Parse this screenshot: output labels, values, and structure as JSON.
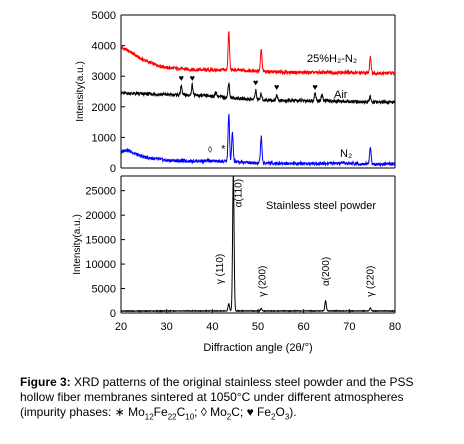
{
  "chart_data": [
    {
      "type": "line",
      "ylabel": "Intensity(a.u.)",
      "ylim": [
        0,
        5000
      ],
      "yticks": [
        0,
        1000,
        2000,
        3000,
        4000,
        5000
      ],
      "xlim": [
        20,
        80
      ],
      "grid": false,
      "series": [
        {
          "name": "25%H₂-N₂",
          "color": "#ff0000",
          "baseline": [
            [
              20,
              3950
            ],
            [
              22,
              3800
            ],
            [
              24,
              3600
            ],
            [
              27,
              3400
            ],
            [
              30,
              3280
            ],
            [
              35,
              3220
            ],
            [
              40,
              3200
            ],
            [
              45,
              3200
            ],
            [
              50,
              3170
            ],
            [
              55,
              3130
            ],
            [
              60,
              3120
            ],
            [
              65,
              3120
            ],
            [
              70,
              3120
            ],
            [
              75,
              3100
            ],
            [
              80,
              3100
            ]
          ],
          "peaks": [
            [
              43.6,
              1250
            ],
            [
              50.7,
              700
            ],
            [
              74.6,
              550
            ]
          ]
        },
        {
          "name": "Air",
          "color": "#000000",
          "baseline": [
            [
              20,
              2450
            ],
            [
              25,
              2420
            ],
            [
              30,
              2400
            ],
            [
              35,
              2380
            ],
            [
              40,
              2350
            ],
            [
              45,
              2280
            ],
            [
              50,
              2230
            ],
            [
              55,
              2200
            ],
            [
              60,
              2200
            ],
            [
              65,
              2200
            ],
            [
              70,
              2170
            ],
            [
              75,
              2150
            ],
            [
              80,
              2150
            ]
          ],
          "peaks": [
            [
              33.2,
              300
            ],
            [
              35.6,
              350
            ],
            [
              40.8,
              150
            ],
            [
              43.6,
              500
            ],
            [
              49.5,
              300
            ],
            [
              50.7,
              200
            ],
            [
              54.1,
              200
            ],
            [
              62.5,
              250
            ],
            [
              64.0,
              200
            ],
            [
              74.6,
              200
            ]
          ]
        },
        {
          "name": "N₂",
          "color": "#0000ff",
          "baseline": [
            [
              20,
              500
            ],
            [
              21,
              600
            ],
            [
              22,
              550
            ],
            [
              24,
              400
            ],
            [
              26,
              330
            ],
            [
              30,
              250
            ],
            [
              35,
              230
            ],
            [
              40,
              230
            ],
            [
              45,
              200
            ],
            [
              50,
              170
            ],
            [
              55,
              150
            ],
            [
              60,
              150
            ],
            [
              65,
              150
            ],
            [
              70,
              150
            ],
            [
              75,
              130
            ],
            [
              80,
              130
            ]
          ],
          "peaks": [
            [
              43.6,
              1550
            ],
            [
              44.4,
              950
            ],
            [
              50.7,
              850
            ],
            [
              74.6,
              550
            ]
          ]
        }
      ],
      "markers": [
        {
          "symbol": "♥",
          "x": 33.2,
          "y": 2850
        },
        {
          "symbol": "♥",
          "x": 35.6,
          "y": 2850
        },
        {
          "symbol": "♥",
          "x": 49.5,
          "y": 2700
        },
        {
          "symbol": "♥",
          "x": 54.1,
          "y": 2550
        },
        {
          "symbol": "♥",
          "x": 62.5,
          "y": 2550
        },
        {
          "symbol": "◊",
          "x": 39.5,
          "y": 500
        },
        {
          "symbol": "*",
          "x": 42.4,
          "y": 500
        }
      ]
    },
    {
      "type": "line",
      "ylabel": "Intensity(a.u.)",
      "ylim": [
        0,
        28000
      ],
      "yticks": [
        0,
        5000,
        10000,
        15000,
        20000,
        25000
      ],
      "xlim": [
        20,
        80
      ],
      "xticks": [
        20,
        30,
        40,
        50,
        60,
        70,
        80
      ],
      "xlabel": "Diffraction angle (2θ/°)",
      "grid": false,
      "title": "Stainless steel powder",
      "series": [
        {
          "name": "Stainless steel powder",
          "color": "#000000",
          "baseline": [
            [
              20,
              400
            ],
            [
              40,
              420
            ],
            [
              80,
              420
            ]
          ],
          "peaks": [
            [
              43.6,
              1500
            ],
            [
              44.6,
              28000
            ],
            [
              50.7,
              500
            ],
            [
              64.8,
              2100
            ],
            [
              74.6,
              600
            ],
            [
              82.2,
              300
            ]
          ]
        }
      ],
      "peak_labels": [
        {
          "text": "γ (110)",
          "x": 42.3,
          "y": 9000
        },
        {
          "text": "α(110)",
          "x": 46.4,
          "y": 24500
        },
        {
          "text": "γ (200)",
          "x": 51.6,
          "y": 6500
        },
        {
          "text": "α(200)",
          "x": 65.6,
          "y": 8500
        },
        {
          "text": "γ (220)",
          "x": 75.3,
          "y": 6500
        }
      ]
    }
  ],
  "caption": {
    "label": "Figure 3:",
    "text": " XRD patterns of the original stainless steel powder and the PSS hollow fiber membranes sintered at 1050°C under different atmospheres (impurity phases: ",
    "phase1_symbol": "∗ ",
    "phase1_formula": [
      "Mo",
      "12",
      "Fe",
      "22",
      "C",
      "10"
    ],
    "phase2_symbol": "; ◊ Mo",
    "phase2_sub": "2",
    "phase2_tail": "C; ",
    "phase3_symbol": "♥ Fe",
    "phase3_formula": [
      "2",
      "O",
      "3"
    ],
    "end": ")."
  }
}
